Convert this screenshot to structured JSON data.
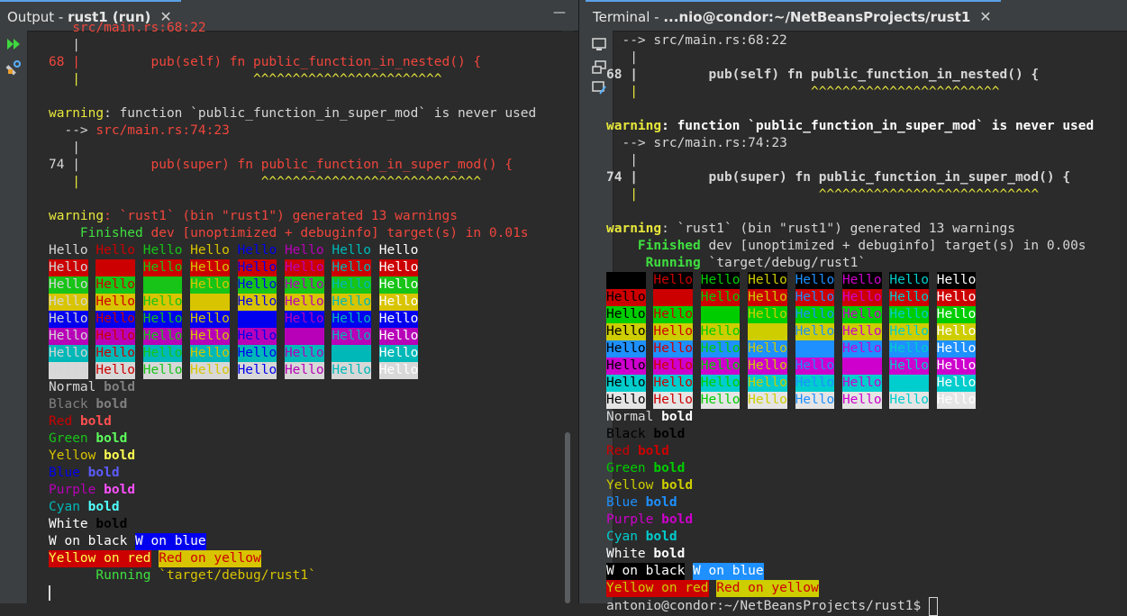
{
  "colors": {
    "bg": "#2b2b2b",
    "fg": "#d6d6d6",
    "bright": "#ffffff",
    "warn": "#e8e83c",
    "err": "#f0463c",
    "green": "#3fe03f",
    "path": "#d8d8d8",
    "c_black": "#000000",
    "c_red": "#cc0000",
    "c_green": "#17c417",
    "c_yellow": "#d8c400",
    "c_blue": "#0000ee",
    "c_purple": "#b800b8",
    "c_cyan": "#00b8b8",
    "c_white": "#d8d8d8",
    "b_black": "#808080",
    "b_red": "#ff5050",
    "b_green": "#5cff5c",
    "b_yellow": "#ffff50",
    "b_blue": "#5c5cff",
    "b_purple": "#ff50ff",
    "b_cyan": "#50ffff",
    "b_white": "#ffffff",
    "t_black": "#000000",
    "t_red": "#cd0000",
    "t_green": "#00cd00",
    "t_yellow": "#cdcd00",
    "t_blue": "#1e90ff",
    "t_purple": "#cd00cd",
    "t_cyan": "#00cdcd",
    "t_white": "#e5e5e5"
  },
  "left": {
    "tab": {
      "prefix": "Output - ",
      "bold": "rust1 (run)",
      "close": "✕"
    },
    "minimize": "—",
    "sidebar": [
      {
        "icon": "rerun-icon"
      },
      {
        "icon": "tools-icon"
      }
    ],
    "lines": [
      [
        {
          "t": "   src/main.rs:68:22",
          "c": "err"
        }
      ],
      [
        {
          "t": "   |",
          "c": "fg"
        }
      ],
      [
        {
          "t": "68 |         pub(self) fn public_function_in_nested() {",
          "c": "err"
        }
      ],
      [
        {
          "t": "   |                      ^^^^^^^^^^^^^^^^^^^^^^^^",
          "c": "warn"
        }
      ],
      [],
      [
        {
          "t": "warning",
          "c": "warn"
        },
        {
          "t": ": function `public_function_in_super_mod` is never used",
          "c": "fg"
        }
      ],
      [
        {
          "t": "  --> ",
          "c": "fg"
        },
        {
          "t": "src/main.rs:74:23",
          "c": "err"
        }
      ],
      [
        {
          "t": "   |",
          "c": "fg"
        }
      ],
      [
        {
          "t": "74 |         ",
          "c": "fg"
        },
        {
          "t": "pub(super) fn public_function_in_super_mod() {",
          "c": "err"
        }
      ],
      [
        {
          "t": "   |                       ^^^^^^^^^^^^^^^^^^^^^^^^^^^^",
          "c": "warn"
        }
      ],
      [],
      [
        {
          "t": "warning",
          "c": "warn"
        },
        {
          "t": ": `rust1` (bin \"rust1\") generated 13 warnings",
          "c": "err"
        }
      ],
      [
        {
          "t": "    Finished",
          "c": "green"
        },
        {
          "t": " dev [unoptimized + debuginfo] target(s) in 0.01s",
          "c": "err"
        }
      ]
    ],
    "grid_fg": [
      "fg",
      "c_red",
      "c_green",
      "c_yellow",
      "c_blue",
      "c_purple",
      "c_cyan",
      "bright"
    ],
    "grid_bg": [
      "",
      "c_red",
      "c_green",
      "c_yellow",
      "c_blue",
      "c_purple",
      "c_cyan",
      "c_white"
    ],
    "grid_word": "Hello",
    "styles": [
      {
        "a": "Normal",
        "ac": "fg",
        "b": "bold",
        "bc": "b_black"
      },
      {
        "a": "Black",
        "ac": "b_black",
        "b": "bold",
        "bc": "b_black"
      },
      {
        "a": "Red",
        "ac": "c_red",
        "b": "bold",
        "bc": "b_red"
      },
      {
        "a": "Green",
        "ac": "c_green",
        "b": "bold",
        "bc": "b_green"
      },
      {
        "a": "Yellow",
        "ac": "c_yellow",
        "b": "bold",
        "bc": "b_yellow"
      },
      {
        "a": "Blue",
        "ac": "c_blue",
        "b": "bold",
        "bc": "b_blue"
      },
      {
        "a": "Purple",
        "ac": "c_purple",
        "b": "bold",
        "bc": "b_purple"
      },
      {
        "a": "Cyan",
        "ac": "c_cyan",
        "b": "bold",
        "bc": "b_cyan"
      },
      {
        "a": "White",
        "ac": "bright",
        "b": "bold",
        "bc": "c_black"
      }
    ],
    "combo1": [
      {
        "t": "W on black",
        "fg": "bright",
        "bg": ""
      },
      {
        "t": " ",
        "fg": "fg",
        "bg": ""
      },
      {
        "t": "W on blue",
        "fg": "bright",
        "bg": "c_blue"
      }
    ],
    "combo2": [
      {
        "t": "Yellow on red",
        "fg": "b_yellow",
        "bg": "c_red"
      },
      {
        "t": " ",
        "fg": "fg",
        "bg": ""
      },
      {
        "t": "Red on yellow",
        "fg": "c_red",
        "bg": "c_yellow"
      }
    ],
    "running": [
      {
        "t": "      Running",
        "c": "green"
      },
      {
        "t": " `target/debug/rust1`",
        "c": "c_yellow"
      }
    ]
  },
  "right": {
    "tab": {
      "prefix": "Terminal - ",
      "bold": "...nio@condor:~/NetBeansProjects/rust1",
      "close": "✕"
    },
    "sidebar": [
      {
        "icon": "terminal-icon"
      },
      {
        "icon": "new-terminal-icon"
      },
      {
        "icon": "clear-terminal-icon"
      }
    ],
    "lines": [
      [
        {
          "t": "  --> src/main.rs:68:22",
          "c": "fg"
        }
      ],
      [
        {
          "t": "   |",
          "c": "fg"
        }
      ],
      [
        {
          "t": "68 |         pub(self) fn public_function_in_nested() {",
          "c": "fg",
          "b": true
        }
      ],
      [
        {
          "t": "   |                      ^^^^^^^^^^^^^^^^^^^^^^^^",
          "c": "warn"
        }
      ],
      [],
      [
        {
          "t": "warning",
          "c": "warn",
          "b": true
        },
        {
          "t": ": function `public_function_in_super_mod` is never used",
          "c": "bright",
          "b": true
        }
      ],
      [
        {
          "t": "  --> ",
          "c": "fg"
        },
        {
          "t": "src/main.rs:74:23",
          "c": "fg"
        }
      ],
      [
        {
          "t": "   |",
          "c": "fg"
        }
      ],
      [
        {
          "t": "74 |         pub(super) fn public_function_in_super_mod() {",
          "c": "fg",
          "b": true
        }
      ],
      [
        {
          "t": "   |                       ^^^^^^^^^^^^^^^^^^^^^^^^^^^^",
          "c": "warn"
        }
      ],
      [],
      [
        {
          "t": "warning",
          "c": "warn",
          "b": true
        },
        {
          "t": ": `rust1` (bin \"rust1\") generated 13 warnings",
          "c": "fg"
        }
      ],
      [
        {
          "t": "    Finished",
          "c": "green",
          "b": true
        },
        {
          "t": " dev [unoptimized + debuginfo] target(s) in 0.00s",
          "c": "fg"
        }
      ],
      [
        {
          "t": "     Running",
          "c": "green",
          "b": true
        },
        {
          "t": " `target/debug/rust1`",
          "c": "fg"
        }
      ]
    ],
    "grid_fg": [
      "t_black",
      "t_red",
      "t_green",
      "t_yellow",
      "t_blue",
      "t_purple",
      "t_cyan",
      "bright"
    ],
    "grid_bg": [
      "t_black",
      "t_red",
      "t_green",
      "t_yellow",
      "t_blue",
      "t_purple",
      "t_cyan",
      "t_white"
    ],
    "grid_word": "Hello",
    "styles": [
      {
        "a": "Normal",
        "ac": "fg",
        "b": "bold",
        "bc": "bright"
      },
      {
        "a": "Black",
        "ac": "t_black",
        "b": "bold",
        "bc": "t_black"
      },
      {
        "a": "Red",
        "ac": "t_red",
        "b": "bold",
        "bc": "t_red"
      },
      {
        "a": "Green",
        "ac": "t_green",
        "b": "bold",
        "bc": "t_green"
      },
      {
        "a": "Yellow",
        "ac": "t_yellow",
        "b": "bold",
        "bc": "t_yellow"
      },
      {
        "a": "Blue",
        "ac": "t_blue",
        "b": "bold",
        "bc": "t_blue"
      },
      {
        "a": "Purple",
        "ac": "t_purple",
        "b": "bold",
        "bc": "t_purple"
      },
      {
        "a": "Cyan",
        "ac": "t_cyan",
        "b": "bold",
        "bc": "t_cyan"
      },
      {
        "a": "White",
        "ac": "bright",
        "b": "bold",
        "bc": "bright"
      }
    ],
    "combo1": [
      {
        "t": "W on black",
        "fg": "bright",
        "bg": "t_black"
      },
      {
        "t": " ",
        "fg": "fg",
        "bg": ""
      },
      {
        "t": "W on blue",
        "fg": "bright",
        "bg": "t_blue"
      }
    ],
    "combo2": [
      {
        "t": "Yellow on red",
        "fg": "t_yellow",
        "bg": "t_red"
      },
      {
        "t": " ",
        "fg": "fg",
        "bg": ""
      },
      {
        "t": "Red on yellow",
        "fg": "t_red",
        "bg": "t_yellow"
      }
    ],
    "prompt": "antonio@condor:~/NetBeansProjects/rust1$ "
  }
}
